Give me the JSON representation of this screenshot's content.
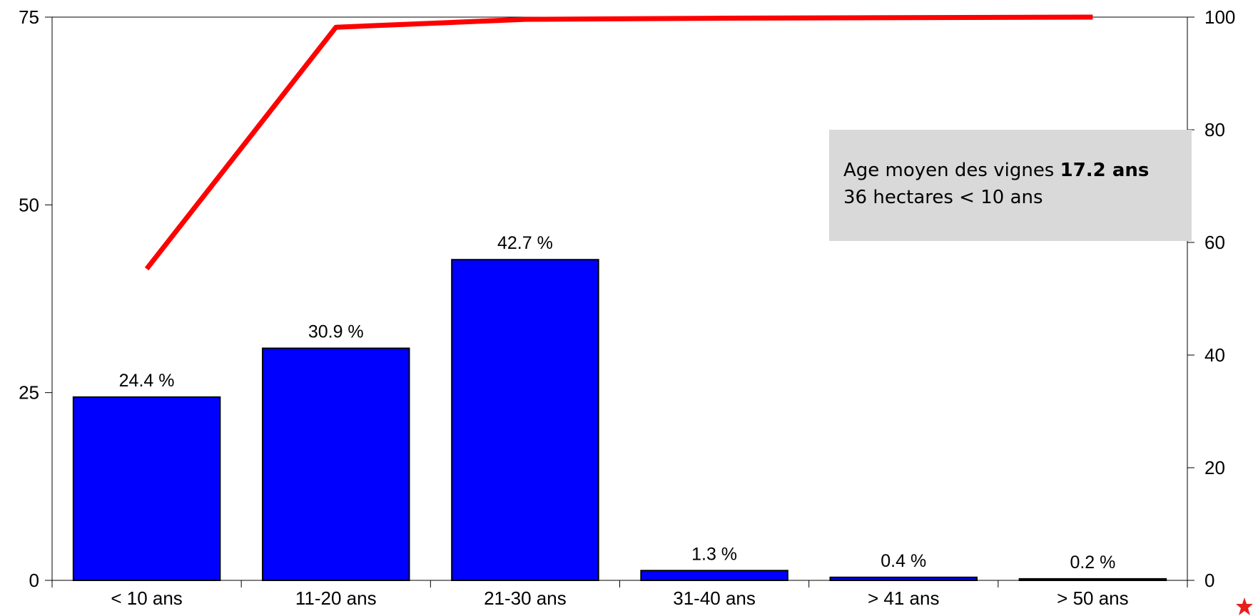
{
  "chart_data": {
    "type": "bar",
    "categories": [
      "< 10 ans",
      "11-20 ans",
      "21-30 ans",
      "31-40 ans",
      "> 41 ans",
      "> 50 ans"
    ],
    "series": [
      {
        "type": "bar",
        "axis": "left",
        "values": [
          24.4,
          30.9,
          42.7,
          1.3,
          0.4,
          0.2
        ]
      },
      {
        "type": "line",
        "axis": "right",
        "values": [
          55.3,
          98.2,
          99.6,
          99.8,
          99.9,
          100
        ]
      }
    ],
    "data_labels": [
      "24.4 %",
      "30.9 %",
      "42.7 %",
      "1.3 %",
      "0.4 %",
      "0.2 %"
    ],
    "left_axis": {
      "min": 0,
      "max": 75,
      "ticks": [
        0,
        25,
        50,
        75
      ]
    },
    "right_axis": {
      "min": 0,
      "max": 100,
      "ticks": [
        0,
        20,
        40,
        60,
        80,
        100
      ]
    },
    "grid": false,
    "colors": {
      "bar": "#0000ff",
      "line": "#ff0000"
    }
  },
  "annotation": {
    "line1_text": "Age moyen des vignes ",
    "line1_bold": "17.2 ans",
    "line2_text": "36 hectares < 10 ans"
  }
}
